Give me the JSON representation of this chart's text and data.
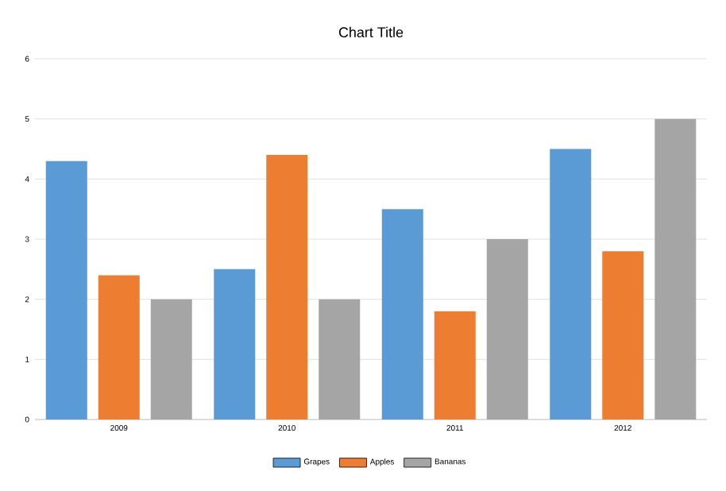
{
  "chart_data": {
    "type": "bar",
    "title": "Chart Title",
    "categories": [
      "2009",
      "2010",
      "2011",
      "2012"
    ],
    "series": [
      {
        "name": "Grapes",
        "color": "#5b9bd5",
        "values": [
          4.3,
          2.5,
          3.5,
          4.5
        ]
      },
      {
        "name": "Apples",
        "color": "#ed7d31",
        "values": [
          2.4,
          4.4,
          1.8,
          2.8
        ]
      },
      {
        "name": "Bananas",
        "color": "#a5a5a5",
        "values": [
          2.0,
          2.0,
          3.0,
          5.0
        ]
      }
    ],
    "ylim": [
      0,
      6
    ],
    "yticks": [
      0,
      1,
      2,
      3,
      4,
      5,
      6
    ],
    "grid": "y",
    "legend": "bottom"
  }
}
